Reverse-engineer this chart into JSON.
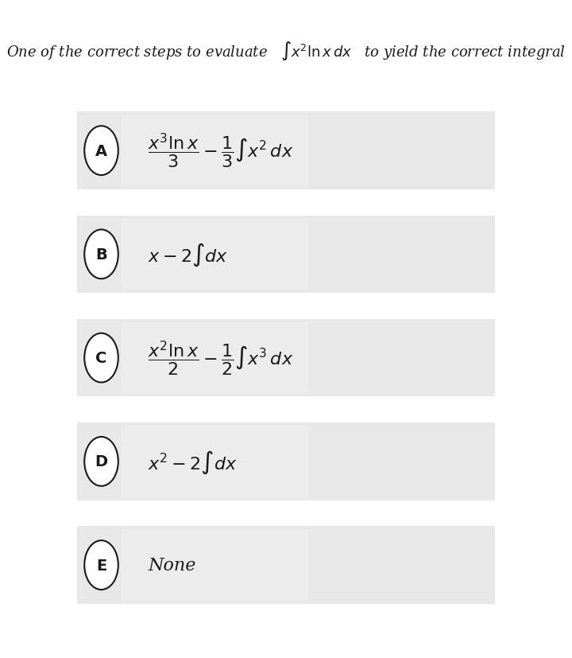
{
  "bg_color": "#f5f5f5",
  "white_bg": "#ffffff",
  "title_text": "One of the correct steps to evaluate",
  "title_integral": "$\\int x^2\\ln x\\, dx$",
  "title_suffix": " to yield the correct integral",
  "options": [
    {
      "label": "A",
      "latex": "$\\dfrac{x^3\\ln x}{3} - \\dfrac{1}{3}\\int x^2\\, dx$"
    },
    {
      "label": "B",
      "latex": "$x - 2\\int dx$"
    },
    {
      "label": "C",
      "latex": "$\\dfrac{x^2\\ln x}{2} - \\dfrac{1}{2}\\int x^3\\, dx$"
    },
    {
      "label": "D",
      "latex": "$x^2 - 2\\int dx$"
    },
    {
      "label": "E",
      "latex": "None"
    }
  ],
  "option_box_color": "#e8e8e8",
  "circle_color": "#ffffff",
  "text_color": "#1a1a1a",
  "font_size_title": 13,
  "font_size_option": 16,
  "font_size_label": 14
}
